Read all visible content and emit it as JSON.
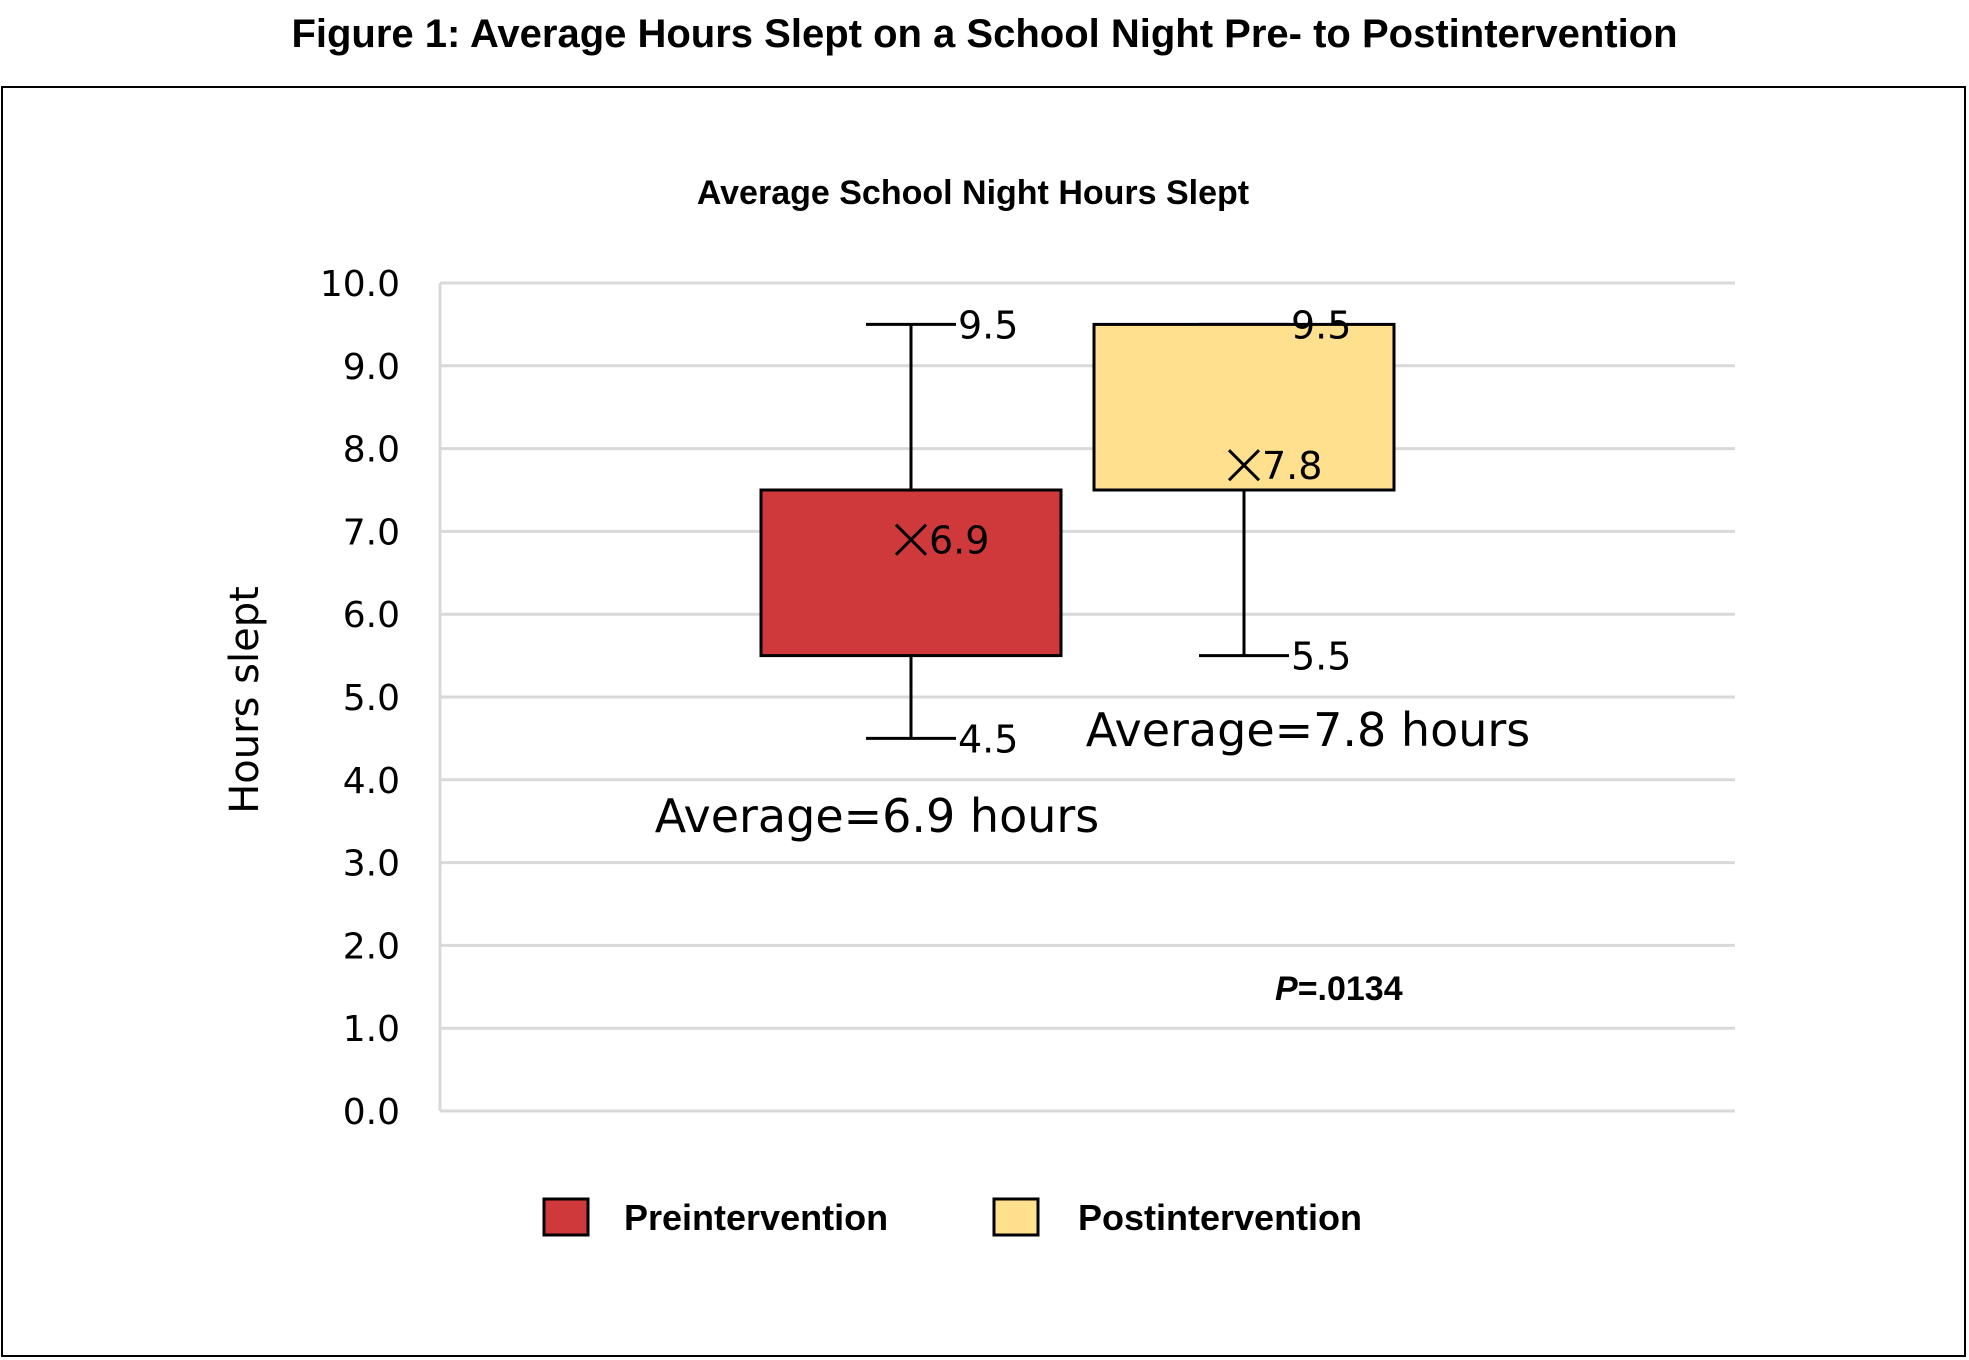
{
  "figure_title": "Figure 1: Average Hours Slept on a School Night Pre- to Postintervention",
  "chart_data": {
    "type": "box",
    "title": "Average School Night Hours Slept",
    "ylabel": "Hours slept",
    "xlabel": "",
    "ylim": [
      0,
      10
    ],
    "y_ticks": [
      "0.0",
      "1.0",
      "2.0",
      "3.0",
      "4.0",
      "5.0",
      "6.0",
      "7.0",
      "8.0",
      "9.0",
      "10.0"
    ],
    "grid": true,
    "legend_position": "bottom",
    "series": [
      {
        "name": "Preintervention",
        "color": "#d0393b",
        "min": 4.5,
        "q1": 5.5,
        "q3": 7.5,
        "max": 9.5,
        "mean": 6.9,
        "min_label": "4.5",
        "max_label": "9.5",
        "mean_label": "6.9",
        "average_label": "Average=6.9 hours"
      },
      {
        "name": "Postintervention",
        "color": "#fee08f",
        "min": 5.5,
        "q1": 7.5,
        "q3": 9.5,
        "max": 9.5,
        "mean": 7.8,
        "min_label": "5.5",
        "max_label": "9.5",
        "mean_label": "7.8",
        "average_label": "Average=7.8 hours"
      }
    ],
    "p_value_prefix": "P",
    "p_value_rest": "=.0134"
  }
}
